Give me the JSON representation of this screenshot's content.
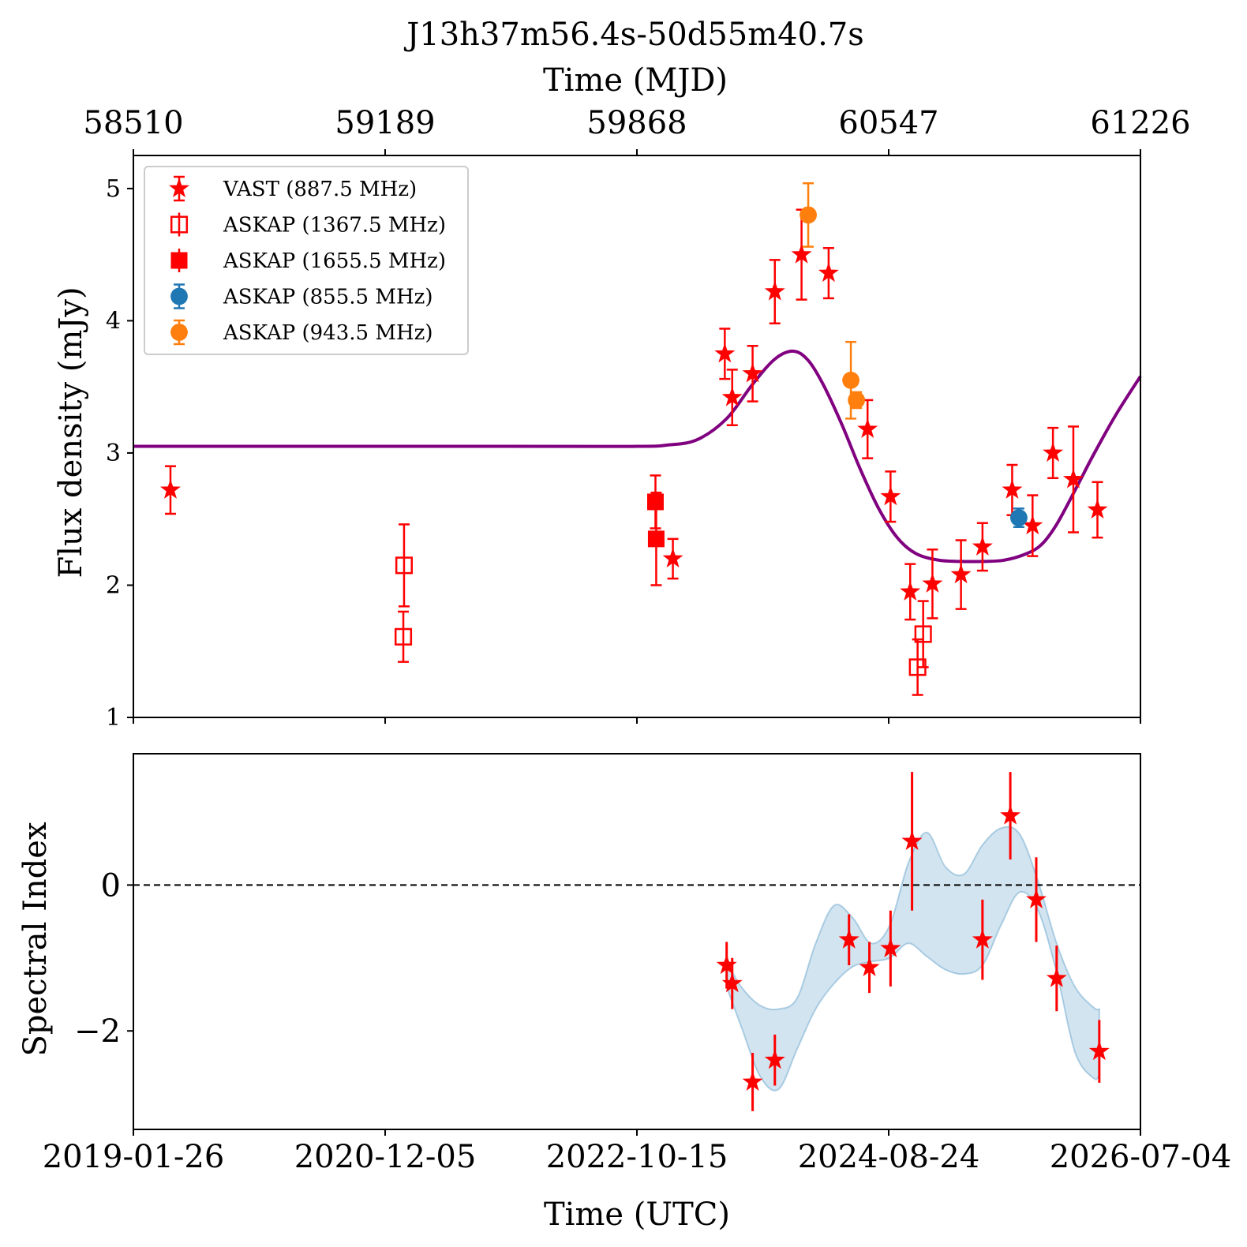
{
  "chart_data": [
    {
      "type": "scatter",
      "title": "J13h37m56.4s-50d55m40.7s",
      "top_axis": {
        "label": "Time (MJD)",
        "ticks": [
          58510,
          59189,
          59868,
          60547,
          61226
        ]
      },
      "xlim": [
        58510,
        61226
      ],
      "ylabel": "Flux density (mJy)",
      "ylim": [
        1.0,
        5.25
      ],
      "yticks": [
        1,
        2,
        3,
        4,
        5
      ],
      "legend_placement": "upper-left",
      "series": [
        {
          "name": "VAST (887.5 MHz)",
          "marker": "star",
          "color": "#ff0000",
          "points": [
            {
              "x": 58610,
              "y": 2.72,
              "err": 0.18
            },
            {
              "x": 59965,
              "y": 2.2,
              "err": 0.15
            },
            {
              "x": 60105,
              "y": 3.75,
              "err": 0.19
            },
            {
              "x": 60125,
              "y": 3.42,
              "err": 0.21
            },
            {
              "x": 60180,
              "y": 3.6,
              "err": 0.21
            },
            {
              "x": 60240,
              "y": 4.22,
              "err": 0.24
            },
            {
              "x": 60312,
              "y": 4.5,
              "err": 0.34
            },
            {
              "x": 60385,
              "y": 4.36,
              "err": 0.19
            },
            {
              "x": 60490,
              "y": 3.18,
              "err": 0.22
            },
            {
              "x": 60552,
              "y": 2.67,
              "err": 0.19
            },
            {
              "x": 60605,
              "y": 1.95,
              "err": 0.21
            },
            {
              "x": 60665,
              "y": 2.01,
              "err": 0.26
            },
            {
              "x": 60742,
              "y": 2.08,
              "err": 0.26
            },
            {
              "x": 60800,
              "y": 2.29,
              "err": 0.18
            },
            {
              "x": 60880,
              "y": 2.72,
              "err": 0.19
            },
            {
              "x": 60935,
              "y": 2.45,
              "err": 0.23
            },
            {
              "x": 60990,
              "y": 3.0,
              "err": 0.19
            },
            {
              "x": 61045,
              "y": 2.8,
              "err": 0.4
            },
            {
              "x": 61110,
              "y": 2.57,
              "err": 0.21
            }
          ]
        },
        {
          "name": "ASKAP (1367.5 MHz)",
          "marker": "square-open",
          "color": "#ff0000",
          "points": [
            {
              "x": 59240,
              "y": 2.15,
              "err": 0.31
            },
            {
              "x": 59238,
              "y": 1.61,
              "err": 0.19
            },
            {
              "x": 60625,
              "y": 1.38,
              "err": 0.21
            },
            {
              "x": 60640,
              "y": 1.63,
              "err": 0.25
            }
          ]
        },
        {
          "name": "ASKAP (1655.5 MHz)",
          "marker": "square",
          "color": "#ff0000",
          "points": [
            {
              "x": 59918,
              "y": 2.63,
              "err": 0.2
            },
            {
              "x": 59920,
              "y": 2.35,
              "err": 0.35
            }
          ]
        },
        {
          "name": "ASKAP (855.5 MHz)",
          "marker": "circle",
          "color": "#1f77b4",
          "points": [
            {
              "x": 60898,
              "y": 2.51,
              "err": 0.07
            }
          ]
        },
        {
          "name": "ASKAP (943.5 MHz)",
          "marker": "circle",
          "color": "#ff7f0e",
          "points": [
            {
              "x": 60330,
              "y": 4.8,
              "err": 0.24
            },
            {
              "x": 60445,
              "y": 3.55,
              "err": 0.29
            },
            {
              "x": 60460,
              "y": 3.4,
              "err": 0.06
            }
          ]
        }
      ],
      "model_curve": {
        "color": "#800080",
        "x": [
          58510,
          59500,
          59868,
          59950,
          60030,
          60110,
          60180,
          60240,
          60290,
          60330,
          60370,
          60420,
          60470,
          60520,
          60570,
          60620,
          60680,
          60740,
          60800,
          60860,
          60920,
          60960,
          61000,
          61050,
          61100,
          61160,
          61226
        ],
        "y": [
          3.05,
          3.05,
          3.05,
          3.06,
          3.1,
          3.26,
          3.52,
          3.71,
          3.77,
          3.7,
          3.52,
          3.22,
          2.88,
          2.58,
          2.36,
          2.24,
          2.19,
          2.18,
          2.18,
          2.19,
          2.24,
          2.31,
          2.46,
          2.72,
          2.99,
          3.29,
          3.58
        ]
      }
    },
    {
      "type": "scatter",
      "xlabel": "Time (UTC)",
      "xlim": [
        58510,
        61226
      ],
      "xticks": [
        {
          "x": 58510,
          "label": "2019-01-26"
        },
        {
          "x": 59189,
          "label": "2020-12-05"
        },
        {
          "x": 59868,
          "label": "2022-10-15"
        },
        {
          "x": 60547,
          "label": "2024-08-24"
        },
        {
          "x": 61226,
          "label": "2026-07-04"
        }
      ],
      "ylabel": "Spectral Index",
      "ylim": [
        -3.35,
        1.8
      ],
      "yticks": [
        0,
        -2
      ],
      "reference_line": {
        "y": 0,
        "style": "dashed",
        "color": "#000000"
      },
      "series": [
        {
          "marker": "star",
          "color": "#ff0000",
          "points": [
            {
              "x": 60110,
              "y": -1.1,
              "err": 0.32
            },
            {
              "x": 60125,
              "y": -1.35,
              "err": 0.35
            },
            {
              "x": 60180,
              "y": -2.7,
              "err": 0.4
            },
            {
              "x": 60240,
              "y": -2.4,
              "err": 0.35
            },
            {
              "x": 60440,
              "y": -0.75,
              "err": 0.35
            },
            {
              "x": 60495,
              "y": -1.13,
              "err": 0.35
            },
            {
              "x": 60552,
              "y": -0.87,
              "err": 0.52
            },
            {
              "x": 60610,
              "y": 0.6,
              "err": 0.95
            },
            {
              "x": 60800,
              "y": -0.75,
              "err": 0.55
            },
            {
              "x": 60875,
              "y": 0.95,
              "err": 0.6
            },
            {
              "x": 60945,
              "y": -0.2,
              "err": 0.58
            },
            {
              "x": 61000,
              "y": -1.28,
              "err": 0.45
            },
            {
              "x": 61115,
              "y": -2.28,
              "err": 0.43
            }
          ]
        }
      ],
      "band": {
        "color": "#1f77b4",
        "opacity": 0.2,
        "x": [
          60110,
          60150,
          60200,
          60250,
          60300,
          60350,
          60400,
          60450,
          60500,
          60550,
          60600,
          60650,
          60700,
          60750,
          60800,
          60850,
          60900,
          60950,
          61000,
          61050,
          61100,
          61115
        ],
        "lower": [
          -1.4,
          -1.95,
          -2.62,
          -2.8,
          -2.25,
          -1.7,
          -1.35,
          -1.12,
          -1.05,
          -1.0,
          -0.8,
          -0.98,
          -1.16,
          -1.22,
          -1.1,
          -0.55,
          -0.1,
          -0.35,
          -1.2,
          -2.3,
          -2.65,
          -2.6
        ],
        "upper": [
          -1.05,
          -1.4,
          -1.65,
          -1.7,
          -1.55,
          -0.8,
          -0.28,
          -0.45,
          -0.8,
          -0.55,
          0.3,
          0.72,
          0.25,
          0.15,
          0.55,
          0.78,
          0.7,
          0.05,
          -0.8,
          -1.4,
          -1.68,
          -1.7
        ]
      }
    }
  ]
}
